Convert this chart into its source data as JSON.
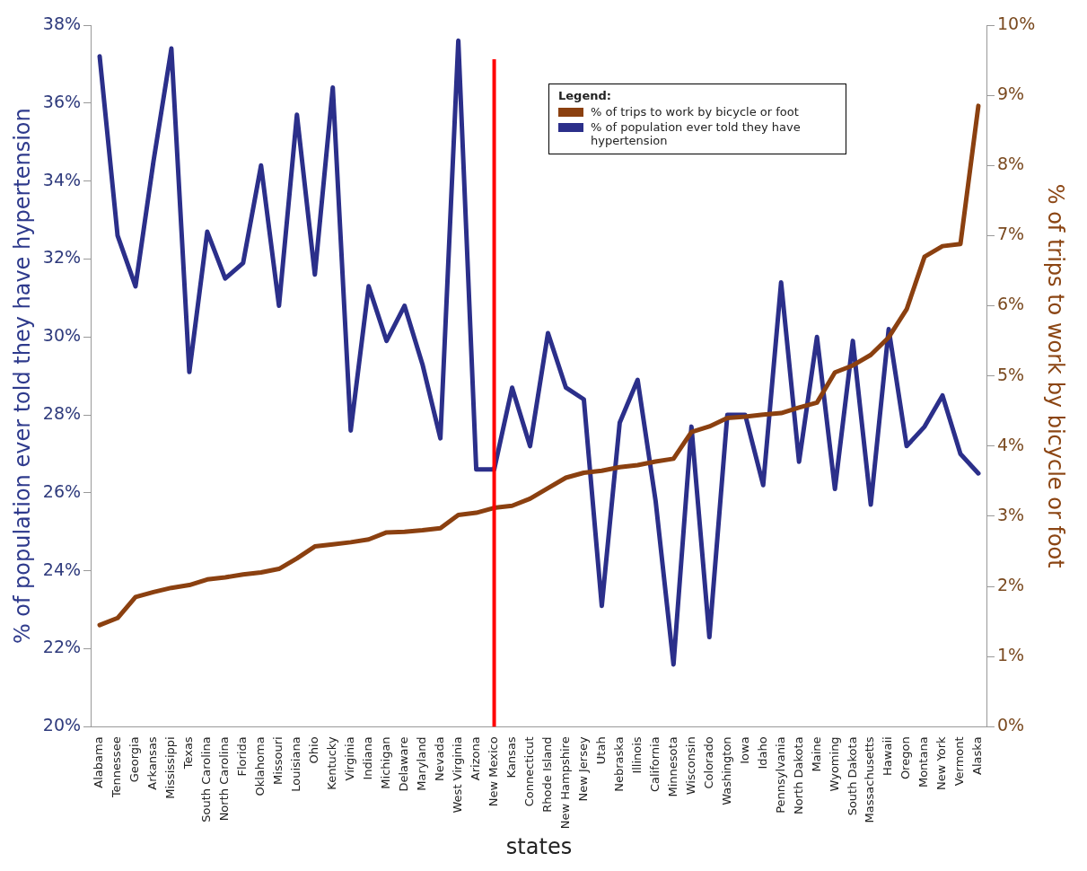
{
  "chart_data": {
    "type": "line",
    "xlabel": "states",
    "ylabel": "% of population ever told they have hypertension",
    "y2label": "% of trips to work by bicycle or foot",
    "legend_title": "Legend:",
    "legend": "top right",
    "grid": false,
    "marker": "none",
    "line_style": "solid",
    "categories": [
      "Alabama",
      "Tennessee",
      "Georgia",
      "Arkansas",
      "Mississippi",
      "Texas",
      "South Carolina",
      "North Carolina",
      "Florida",
      "Oklahoma",
      "Missouri",
      "Louisiana",
      "Ohio",
      "Kentucky",
      "Virginia",
      "Indiana",
      "Michigan",
      "Delaware",
      "Maryland",
      "Nevada",
      "West Virginia",
      "Arizona",
      "New Mexico",
      "Kansas",
      "Connecticut",
      "Rhode Island",
      "New Hampshire",
      "New Jersey",
      "Utah",
      "Nebraska",
      "Illinois",
      "California",
      "Minnesota",
      "Wisconsin",
      "Colorado",
      "Washington",
      "Iowa",
      "Idaho",
      "Pennsylvania",
      "North Dakota",
      "Maine",
      "Wyoming",
      "South Dakota",
      "Massachusetts",
      "Hawaii",
      "Oregon",
      "Montana",
      "New York",
      "Vermont",
      "Alaska"
    ],
    "series": [
      {
        "name": "% of trips to work by bicycle or foot",
        "color": "#8b4010",
        "axis": "y2",
        "values": [
          1.45,
          1.55,
          1.85,
          1.92,
          1.98,
          2.02,
          2.1,
          2.13,
          2.17,
          2.2,
          2.25,
          2.4,
          2.57,
          2.6,
          2.63,
          2.67,
          2.77,
          2.78,
          2.8,
          2.83,
          3.02,
          3.05,
          3.12,
          3.15,
          3.25,
          3.4,
          3.55,
          3.62,
          3.65,
          3.7,
          3.73,
          3.78,
          3.82,
          4.2,
          4.28,
          4.4,
          4.42,
          4.45,
          4.47,
          4.55,
          4.62,
          5.05,
          5.15,
          5.3,
          5.55,
          5.95,
          6.7,
          6.85,
          6.88,
          8.85
        ]
      },
      {
        "name": "% of population ever told they have hypertension",
        "color": "#2b2f8a",
        "axis": "y",
        "values": [
          37.2,
          32.6,
          31.3,
          34.5,
          37.4,
          29.1,
          32.7,
          31.5,
          31.9,
          34.4,
          30.8,
          35.7,
          31.6,
          36.4,
          27.6,
          31.3,
          29.9,
          30.8,
          29.3,
          27.4,
          37.6,
          26.6,
          26.6,
          28.7,
          27.2,
          30.1,
          28.7,
          28.4,
          23.1,
          27.8,
          28.9,
          25.8,
          21.6,
          27.7,
          22.3,
          28.0,
          28.0,
          26.2,
          31.4,
          26.8,
          30.0,
          26.1,
          29.9,
          25.7,
          30.2,
          27.2,
          27.7,
          28.5,
          27.0,
          26.5
        ]
      }
    ],
    "ylim": [
      20,
      38
    ],
    "yticks": [
      {
        "value": 20,
        "label": "20%"
      },
      {
        "value": 22,
        "label": "22%"
      },
      {
        "value": 24,
        "label": "24%"
      },
      {
        "value": 26,
        "label": "26%"
      },
      {
        "value": 28,
        "label": "28%"
      },
      {
        "value": 30,
        "label": "30%"
      },
      {
        "value": 32,
        "label": "32%"
      },
      {
        "value": 34,
        "label": "34%"
      },
      {
        "value": 36,
        "label": "36%"
      },
      {
        "value": 38,
        "label": "38%"
      }
    ],
    "y2lim": [
      0,
      10
    ],
    "y2ticks": [
      {
        "value": 0,
        "label": "0%"
      },
      {
        "value": 1,
        "label": "1%"
      },
      {
        "value": 2,
        "label": "2%"
      },
      {
        "value": 3,
        "label": "3%"
      },
      {
        "value": 4,
        "label": "4%"
      },
      {
        "value": 5,
        "label": "5%"
      },
      {
        "value": 6,
        "label": "6%"
      },
      {
        "value": 7,
        "label": "7%"
      },
      {
        "value": 8,
        "label": "8%"
      },
      {
        "value": 9,
        "label": "9%"
      },
      {
        "value": 10,
        "label": "10%"
      }
    ],
    "ref_lines": [
      {
        "axis": "x",
        "value": "New Mexico",
        "color": "#ff0000"
      }
    ]
  }
}
